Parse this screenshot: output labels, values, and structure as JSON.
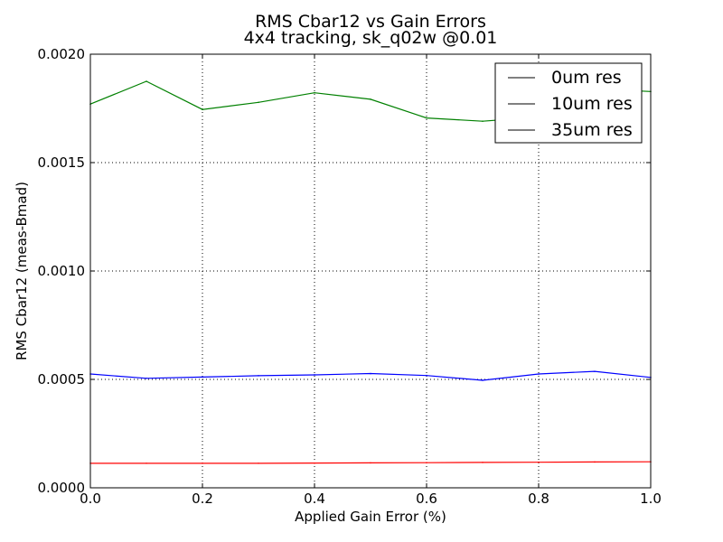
{
  "chart_data": {
    "type": "line",
    "title": "RMS Cbar12 vs Gain Errors",
    "subtitle": "4x4 tracking, sk_q02w @0.01",
    "xlabel": "Applied Gain Error (%)",
    "ylabel": "RMS Cbar12 (meas-Bmad)",
    "xlim": [
      0,
      1
    ],
    "ylim": [
      0,
      0.002
    ],
    "grid": true,
    "legend_position": "top-right",
    "x_ticks": [
      "0.0",
      "0.2",
      "0.4",
      "0.6",
      "0.8",
      "1.0"
    ],
    "y_ticks": [
      "0.0000",
      "0.0005",
      "0.0010",
      "0.0015",
      "0.0020"
    ],
    "x": [
      0.0,
      0.1,
      0.2,
      0.3,
      0.4,
      0.5,
      0.6,
      0.7,
      0.8,
      0.9,
      1.0
    ],
    "series": [
      {
        "name": "0um res",
        "color": "#ff0000",
        "values": [
          0.000113,
          0.000113,
          0.000113,
          0.000113,
          0.000114,
          0.000115,
          0.000116,
          0.000117,
          0.000118,
          0.000119,
          0.00012
        ]
      },
      {
        "name": "10um res",
        "color": "#0000ff",
        "values": [
          0.000525,
          0.000505,
          0.000511,
          0.000517,
          0.000521,
          0.000527,
          0.000518,
          0.000496,
          0.000525,
          0.000537,
          0.000509
        ]
      },
      {
        "name": "35um res",
        "color": "#008000",
        "values": [
          0.00177,
          0.001875,
          0.001745,
          0.001778,
          0.001822,
          0.001792,
          0.001706,
          0.001691,
          0.00171,
          0.00184,
          0.001828
        ]
      }
    ],
    "legend_line_color": "#000000"
  }
}
